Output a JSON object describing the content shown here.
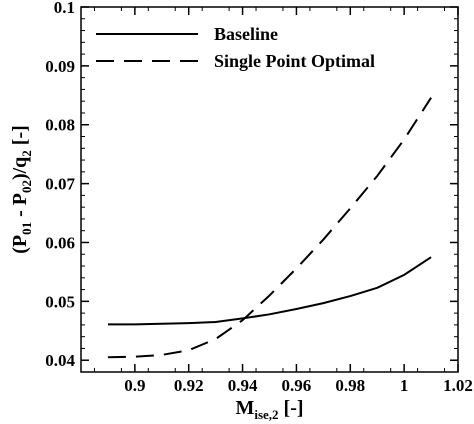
{
  "chart_data": {
    "type": "line",
    "xlabel": {
      "main": "M",
      "sub": "ise,2",
      "unit": " [-]"
    },
    "ylabel": {
      "p1": "(P",
      "s1": "01",
      "p2": " - P",
      "s2": "02",
      "p3": ")/q",
      "s3": "2",
      "p4": " [-]"
    },
    "xlim": [
      0.88,
      1.02
    ],
    "ylim": [
      0.038,
      0.1
    ],
    "xticks": [
      0.9,
      0.92,
      0.94,
      0.96,
      0.98,
      1,
      1.02
    ],
    "xtick_labels": [
      "0.9",
      "0.92",
      "0.94",
      "0.96",
      "0.98",
      "1",
      "1.02"
    ],
    "yticks": [
      0.04,
      0.05,
      0.06,
      0.07,
      0.08,
      0.09,
      0.1
    ],
    "ytick_labels": [
      "0.04",
      "0.05",
      "0.06",
      "0.07",
      "0.08",
      "0.09",
      "0.1"
    ],
    "legend_position": "top-left",
    "series": [
      {
        "name": "Baseline",
        "style": "solid",
        "color": "#000000",
        "x": [
          0.89,
          0.9,
          0.91,
          0.92,
          0.93,
          0.94,
          0.95,
          0.96,
          0.97,
          0.98,
          0.99,
          1.0,
          1.01
        ],
        "y": [
          0.0461,
          0.0461,
          0.0462,
          0.0463,
          0.0465,
          0.0471,
          0.0478,
          0.0487,
          0.0497,
          0.0509,
          0.0523,
          0.0545,
          0.0575
        ]
      },
      {
        "name": "Single Point Optimal",
        "style": "dashed",
        "color": "#000000",
        "x": [
          0.89,
          0.9,
          0.91,
          0.92,
          0.93,
          0.94,
          0.95,
          0.96,
          0.97,
          0.98,
          0.99,
          1.0,
          1.01
        ],
        "y": [
          0.0405,
          0.0406,
          0.0409,
          0.0417,
          0.0436,
          0.0468,
          0.051,
          0.0556,
          0.0605,
          0.0658,
          0.0713,
          0.0775,
          0.0846
        ]
      }
    ]
  }
}
